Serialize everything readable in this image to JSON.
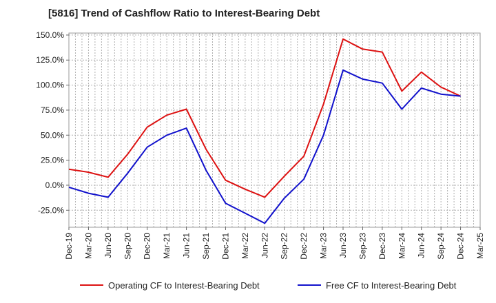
{
  "chart_data": {
    "type": "line",
    "title": "[5816]  Trend of Cashflow Ratio to Interest-Bearing Debt",
    "xlabel": "",
    "ylabel": "",
    "x": [
      "Dec-19",
      "Mar-20",
      "Jun-20",
      "Sep-20",
      "Dec-20",
      "Mar-21",
      "Jun-21",
      "Sep-21",
      "Dec-21",
      "Mar-22",
      "Jun-22",
      "Sep-22",
      "Dec-22",
      "Mar-23",
      "Jun-23",
      "Sep-23",
      "Dec-23",
      "Mar-24",
      "Jun-24",
      "Sep-24",
      "Dec-24",
      "Mar-25"
    ],
    "y_ticks": [
      "-25.0%",
      "0.0%",
      "25.0%",
      "50.0%",
      "75.0%",
      "100.0%",
      "125.0%",
      "150.0%"
    ],
    "ylim": [
      -42,
      152
    ],
    "grid": true,
    "legend_position": "bottom",
    "series": [
      {
        "name": "Operating CF to Interest-Bearing Debt",
        "color": "#dd1111",
        "values": [
          16,
          13,
          8,
          31,
          58,
          70,
          76,
          36,
          5,
          -4,
          -12,
          9,
          29,
          81,
          146,
          136,
          133,
          94,
          113,
          98,
          89,
          null
        ]
      },
      {
        "name": "Free CF to Interest-Bearing Debt",
        "color": "#1111cc",
        "values": [
          -2,
          -8,
          -12,
          12,
          38,
          50,
          57,
          15,
          -18,
          -28,
          -38,
          -13,
          6,
          50,
          115,
          106,
          102,
          76,
          97,
          91,
          89,
          null
        ]
      }
    ]
  }
}
